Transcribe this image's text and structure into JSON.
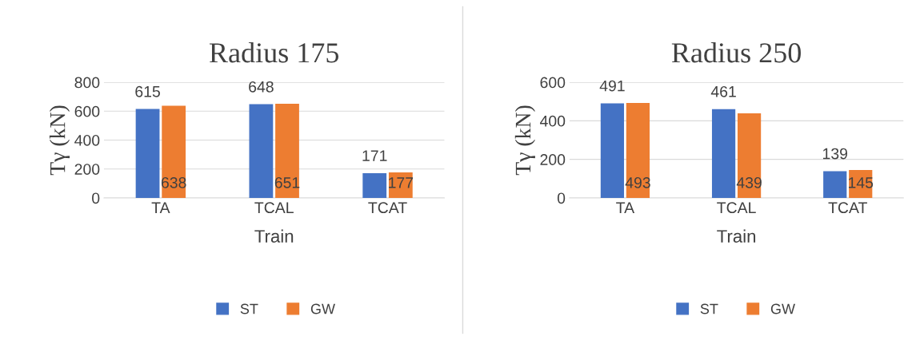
{
  "chart_data": [
    {
      "type": "bar",
      "title": "Radius 175",
      "xlabel": "Train",
      "ylabel": "Tγ (kN)",
      "categories": [
        "TA",
        "TCAL",
        "TCAT"
      ],
      "series": [
        {
          "name": "ST",
          "color": "#4472c4",
          "values": [
            615,
            648,
            171
          ]
        },
        {
          "name": "GW",
          "color": "#ed7d31",
          "values": [
            638,
            651,
            177
          ]
        }
      ],
      "ylim": [
        0,
        800
      ],
      "yticks": [
        0,
        200,
        400,
        600,
        800
      ],
      "grid": "y",
      "legend": "bottom",
      "data_labels": true
    },
    {
      "type": "bar",
      "title": "Radius 250",
      "xlabel": "Train",
      "ylabel": "Tγ (kN)",
      "categories": [
        "TA",
        "TCAL",
        "TCAT"
      ],
      "series": [
        {
          "name": "ST",
          "color": "#4472c4",
          "values": [
            491,
            461,
            139
          ]
        },
        {
          "name": "GW",
          "color": "#ed7d31",
          "values": [
            493,
            439,
            145
          ]
        }
      ],
      "ylim": [
        0,
        600
      ],
      "yticks": [
        0,
        200,
        400,
        600
      ],
      "grid": "y",
      "legend": "bottom",
      "data_labels": true
    }
  ]
}
